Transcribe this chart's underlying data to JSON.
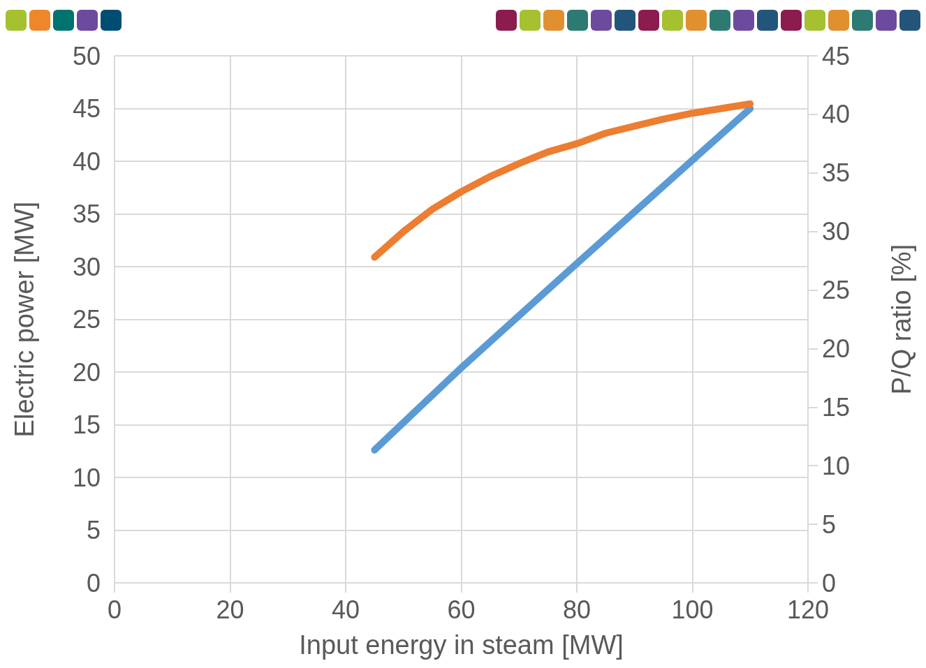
{
  "chart_data": {
    "type": "line",
    "xlabel": "Input energy in steam [MW]",
    "ylabel": "Electric power [MW]",
    "y2label": "P/Q ratio [%]",
    "xlim": [
      0,
      120
    ],
    "xticks": [
      0,
      20,
      40,
      60,
      80,
      100,
      120
    ],
    "ylim": [
      0,
      50
    ],
    "yticks": [
      0,
      5,
      10,
      15,
      20,
      25,
      30,
      35,
      40,
      45,
      50
    ],
    "y2lim": [
      0,
      45
    ],
    "y2ticks": [
      0,
      5,
      10,
      15,
      20,
      25,
      30,
      35,
      40,
      45
    ],
    "grid": true,
    "marker": "none",
    "line_style": "solid",
    "series": [
      {
        "color": "#5b9bd5",
        "x": [
          45,
          60,
          80,
          100,
          110
        ],
        "values": [
          12.6,
          20.4,
          30.3,
          40.1,
          45
        ]
      },
      {
        "color": "#ed7d31",
        "axis": "y2",
        "x": [
          45,
          50,
          55,
          60,
          65,
          70,
          75,
          80,
          85,
          90,
          95,
          100,
          105,
          110
        ],
        "values": [
          27.8,
          30.0,
          31.9,
          33.4,
          34.7,
          35.8,
          36.8,
          37.5,
          38.4,
          39.0,
          39.6,
          40.1,
          40.5,
          40.9
        ]
      }
    ]
  }
}
